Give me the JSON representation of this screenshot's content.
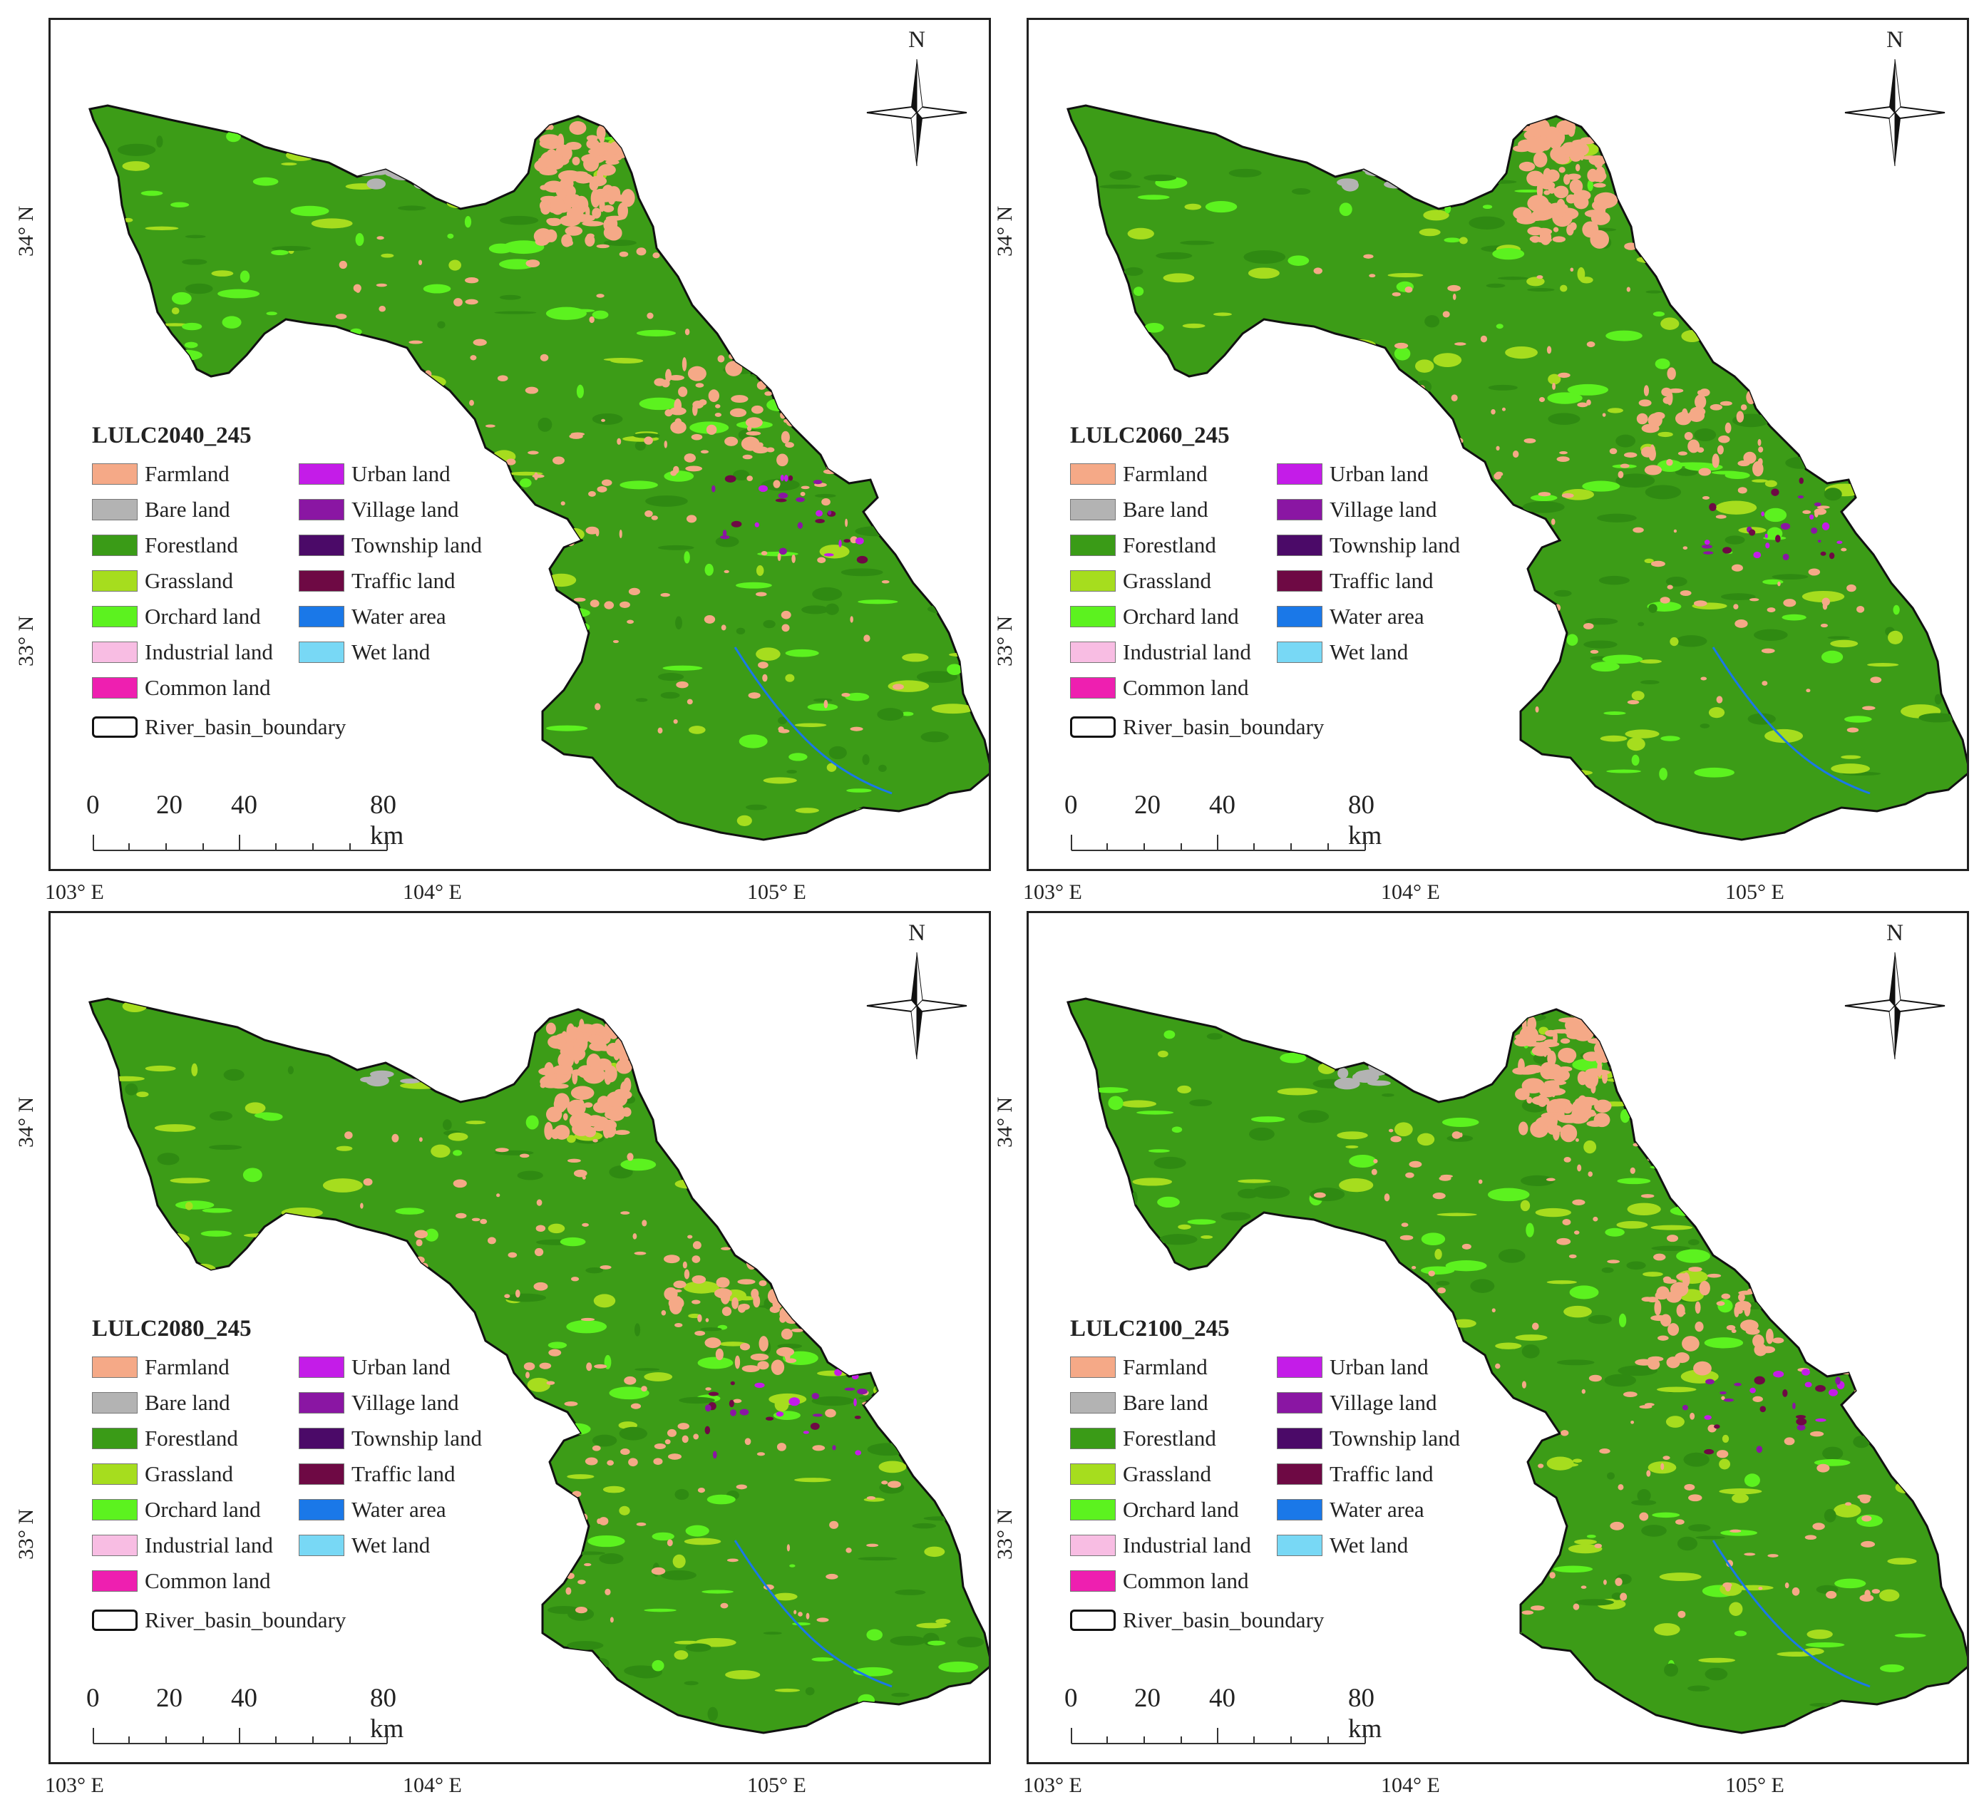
{
  "legend_items_left": [
    {
      "label": "Farmland",
      "color": "#f5a987"
    },
    {
      "label": "Bare land",
      "color": "#b3b3b3"
    },
    {
      "label": "Forestland",
      "color": "#3a9b17"
    },
    {
      "label": "Grassland",
      "color": "#a6dd1e"
    },
    {
      "label": "Orchard land",
      "color": "#5cf21f"
    },
    {
      "label": "Industrial land",
      "color": "#f8bde3"
    },
    {
      "label": "Common land",
      "color": "#ee1fb0"
    }
  ],
  "legend_items_right": [
    {
      "label": "Urban land",
      "color": "#c41ce8"
    },
    {
      "label": "Village land",
      "color": "#8a16a3"
    },
    {
      "label": "Township land",
      "color": "#4b0a68"
    },
    {
      "label": "Traffic land",
      "color": "#6e0944"
    },
    {
      "label": "Water area",
      "color": "#1a78e8"
    },
    {
      "label": "Wet land",
      "color": "#78d8f5"
    }
  ],
  "boundary_label": "River_basin_boundary",
  "scale": {
    "labels": [
      "0",
      "20",
      "40",
      "80 km"
    ]
  },
  "north_label": "N",
  "x_ticks": [
    "103° E",
    "104° E",
    "105° E"
  ],
  "y_ticks": [
    "34° N",
    "33° N"
  ],
  "panels": [
    {
      "title": "LULC2040_245"
    },
    {
      "title": "LULC2060_245"
    },
    {
      "title": "LULC2080_245"
    },
    {
      "title": "LULC2100_245"
    }
  ]
}
